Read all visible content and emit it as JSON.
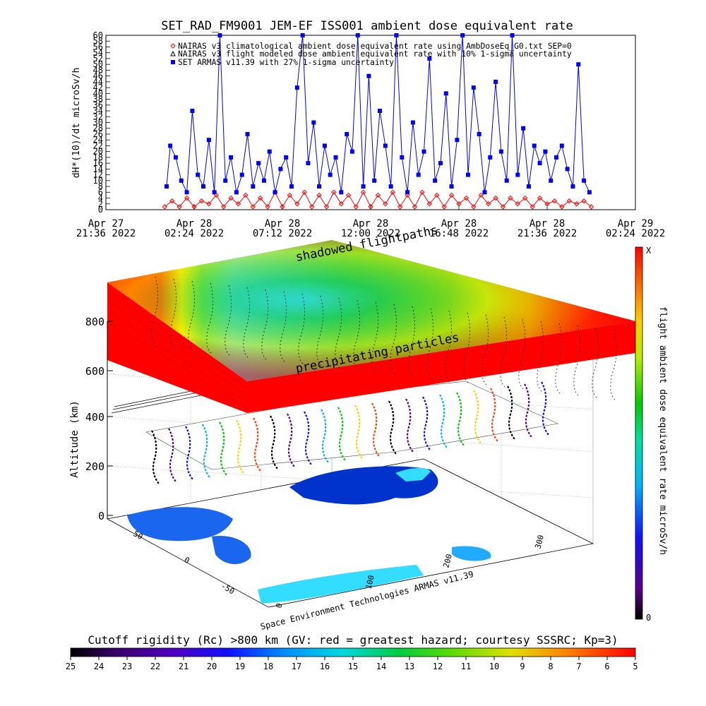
{
  "top_chart": {
    "title": "SET_RAD_FM9001  JEM-EF ISS001 ambient dose equivalent rate",
    "ylabel": "dH*(10)/dt microSv/h",
    "y_ticks": [
      "0",
      "2",
      "4",
      "6",
      "8",
      "10",
      "12",
      "14",
      "16",
      "18",
      "20",
      "22",
      "24",
      "26",
      "28",
      "30",
      "32",
      "34",
      "36",
      "38",
      "40",
      "42",
      "44",
      "46",
      "48",
      "50",
      "52",
      "54",
      "56",
      "58",
      "60"
    ],
    "x_tick_line1": [
      "Apr 27",
      "Apr 28",
      "Apr 28",
      "Apr 28",
      "Apr 28",
      "Apr 28",
      "Apr 29"
    ],
    "x_tick_line2": [
      "21:36 2022",
      "02:24 2022",
      "07:12 2022",
      "12:00 2022",
      "16:48 2022",
      "21:36 2022",
      "02:24 2022"
    ],
    "legend": [
      {
        "text": "NAIRAS v3 climatological ambient dose equivalent rate using AmbDoseEq_G0.txt SEP=0",
        "symbol": "diamond",
        "color": "#ff0000"
      },
      {
        "text": "NAIRAS v3 flight modeled dose ambient equivalent rate with 10% 1-sigma uncertainty",
        "symbol": "triangle",
        "color": "#000000"
      },
      {
        "text": "SET ARMAS v11.39 with 27% 1-sigma uncertainty",
        "symbol": "square",
        "color": "#0000ff"
      }
    ],
    "overlay_text": "shadowed flightpaths"
  },
  "chart_data": [
    {
      "type": "line",
      "title": "SET_RAD_FM9001  JEM-EF ISS001 ambient dose equivalent rate",
      "ylabel": "dH*(10)/dt microSv/h",
      "ylim": [
        0,
        60
      ],
      "xlim_hours_from_Apr27_21_36": [
        0,
        28.8
      ],
      "series": [
        {
          "name": "NAIRAS v3 climatological ambient dose equivalent rate using AmbDoseEq_G0.txt SEP=0",
          "color": "#ff0000",
          "x": [
            3.2,
            3.6,
            4.0,
            4.4,
            4.8,
            5.2,
            5.6,
            6.0,
            6.4,
            6.8,
            7.2,
            7.6,
            8.0,
            8.4,
            8.8,
            9.2,
            9.6,
            10.0,
            10.4,
            10.8,
            11.2,
            11.6,
            12.0,
            12.4,
            12.8,
            13.2,
            13.6,
            14.0,
            14.4,
            14.8,
            15.2,
            15.6,
            16.0,
            16.4,
            16.8,
            17.2,
            17.6,
            18.0,
            18.4,
            18.8,
            19.2,
            19.6,
            20.0,
            20.4,
            20.8,
            21.2,
            21.6,
            22.0,
            22.4,
            22.8,
            23.2,
            23.6,
            24.0,
            24.4,
            24.8,
            25.2,
            25.6,
            26.0,
            26.4
          ],
          "values": [
            1,
            3,
            1,
            4,
            1,
            3,
            2,
            5,
            1,
            4,
            2,
            5,
            1,
            4,
            1,
            6,
            1,
            5,
            2,
            6,
            1,
            5,
            1,
            6,
            2,
            5,
            1,
            6,
            1,
            5,
            2,
            6,
            1,
            5,
            1,
            6,
            2,
            5,
            1,
            5,
            2,
            4,
            1,
            5,
            2,
            4,
            1,
            4,
            2,
            4,
            1,
            4,
            2,
            3,
            1,
            3,
            2,
            3,
            1
          ]
        },
        {
          "name": "SET ARMAS v11.39 with 27% 1-sigma uncertainty",
          "color": "#0000ff",
          "x": [
            3.3,
            3.5,
            3.8,
            4.1,
            4.4,
            4.7,
            5.0,
            5.3,
            5.6,
            5.9,
            6.2,
            6.5,
            6.8,
            7.1,
            7.4,
            7.7,
            8.0,
            8.3,
            8.6,
            8.9,
            9.2,
            9.5,
            9.8,
            10.1,
            10.4,
            10.7,
            11.0,
            11.3,
            11.6,
            11.9,
            12.2,
            12.5,
            12.8,
            13.1,
            13.4,
            13.7,
            14.0,
            14.3,
            14.6,
            14.9,
            15.2,
            15.5,
            15.8,
            16.1,
            16.4,
            16.7,
            17.0,
            17.3,
            17.6,
            17.9,
            18.2,
            18.5,
            18.8,
            19.1,
            19.4,
            19.7,
            20.0,
            20.3,
            20.6,
            20.9,
            21.2,
            21.5,
            21.8,
            22.1,
            22.4,
            22.7,
            23.0,
            23.3,
            23.6,
            23.9,
            24.2,
            24.5,
            24.8,
            25.1,
            25.4,
            25.7,
            26.0,
            26.3
          ],
          "values": [
            8,
            22,
            18,
            10,
            6,
            34,
            12,
            8,
            24,
            6,
            60,
            10,
            18,
            6,
            12,
            26,
            8,
            16,
            10,
            20,
            6,
            14,
            18,
            8,
            42,
            60,
            16,
            30,
            8,
            22,
            12,
            18,
            6,
            26,
            20,
            60,
            8,
            46,
            10,
            34,
            22,
            8,
            60,
            18,
            6,
            30,
            12,
            20,
            52,
            10,
            16,
            40,
            8,
            24,
            60,
            12,
            42,
            26,
            6,
            18,
            44,
            20,
            10,
            60,
            12,
            28,
            8,
            22,
            16,
            20,
            10,
            18,
            22,
            14,
            8,
            50,
            10,
            6
          ]
        }
      ]
    },
    {
      "type": "heatmap",
      "title": "Cutoff rigidity (Rc) >800 km (GV: red = greatest hazard; courtesy SSSRC; Kp=3)",
      "colorbar_ticks": [
        "25",
        "24",
        "23",
        "22",
        "21",
        "20",
        "19",
        "18",
        "17",
        "16",
        "15",
        "14",
        "13",
        "12",
        "11",
        "10",
        "9",
        "8",
        "7",
        "6",
        "5"
      ],
      "colorbar_range": [
        25,
        5
      ]
    }
  ],
  "panel3d": {
    "altitude_label": "Altitude (km)",
    "altitude_ticks": [
      "0",
      "200",
      "400",
      "600",
      "800"
    ],
    "lon_ticks": [
      "0",
      "100",
      "200",
      "300"
    ],
    "lat_ticks": [
      "50",
      "0",
      "-50"
    ],
    "label_precip": "precipitating particles",
    "label_shadow": "shadowed flightpaths",
    "credit": "Space Environment Technologies ARMAS v11.39"
  },
  "right_colorbar": {
    "label": "flight ambient dose equivalent rate microSv/h",
    "top_tick": "X",
    "bottom_tick": "0"
  },
  "bottom_colorbar": {
    "title": "Cutoff rigidity (Rc) >800 km (GV: red = greatest hazard; courtesy SSSRC; Kp=3)",
    "ticks": [
      "25",
      "24",
      "23",
      "22",
      "21",
      "20",
      "19",
      "18",
      "17",
      "16",
      "15",
      "14",
      "13",
      "12",
      "11",
      "10",
      "9",
      "8",
      "7",
      "6",
      "5"
    ]
  },
  "colors": {
    "armas_blue": "#0000ff",
    "nairas_red": "#ff0000",
    "hazard_red": "#ff0000",
    "low_cyan": "#33ddff",
    "mid_green": "#22cc22"
  }
}
